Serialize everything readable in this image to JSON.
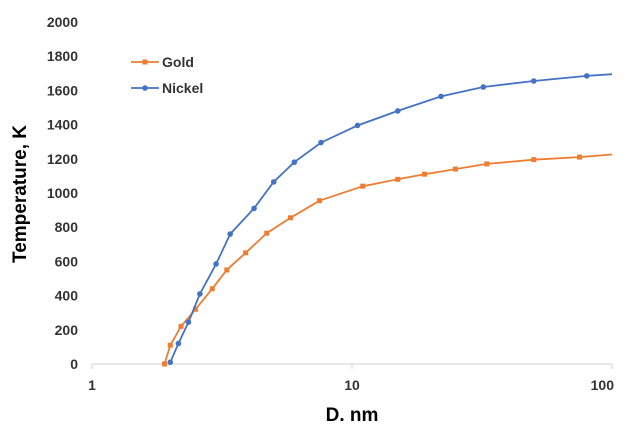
{
  "chart_data": {
    "type": "line",
    "title": "",
    "xlabel": "D. nm",
    "ylabel": "Temperature,  K",
    "x_scale": "log",
    "xlim": [
      1,
      100
    ],
    "ylim": [
      0,
      2000
    ],
    "x_ticks": [
      "1",
      "10",
      "100"
    ],
    "y_ticks": [
      "0",
      "200",
      "400",
      "600",
      "800",
      "1000",
      "1200",
      "1400",
      "1600",
      "1800",
      "2000"
    ],
    "grid": false,
    "legend_position": "top-left",
    "series": [
      {
        "name": "Gold",
        "color": "#ED7D31",
        "marker": "square",
        "x": [
          1.9,
          2.0,
          2.2,
          2.5,
          2.9,
          3.3,
          3.9,
          4.7,
          5.8,
          7.5,
          11,
          15,
          19,
          25,
          33,
          50,
          75,
          110
        ],
        "y": [
          0,
          110,
          220,
          320,
          440,
          550,
          650,
          765,
          855,
          955,
          1040,
          1080,
          1110,
          1140,
          1170,
          1195,
          1210,
          1225
        ]
      },
      {
        "name": "Nickel",
        "color": "#4472C4",
        "marker": "circle",
        "x": [
          2.0,
          2.15,
          2.35,
          2.6,
          3.0,
          3.4,
          4.2,
          5.0,
          6.0,
          7.6,
          10.5,
          15,
          22,
          32,
          50,
          80,
          110
        ],
        "y": [
          10,
          120,
          245,
          410,
          585,
          760,
          910,
          1065,
          1180,
          1295,
          1395,
          1480,
          1565,
          1620,
          1655,
          1685,
          1695
        ]
      }
    ]
  }
}
